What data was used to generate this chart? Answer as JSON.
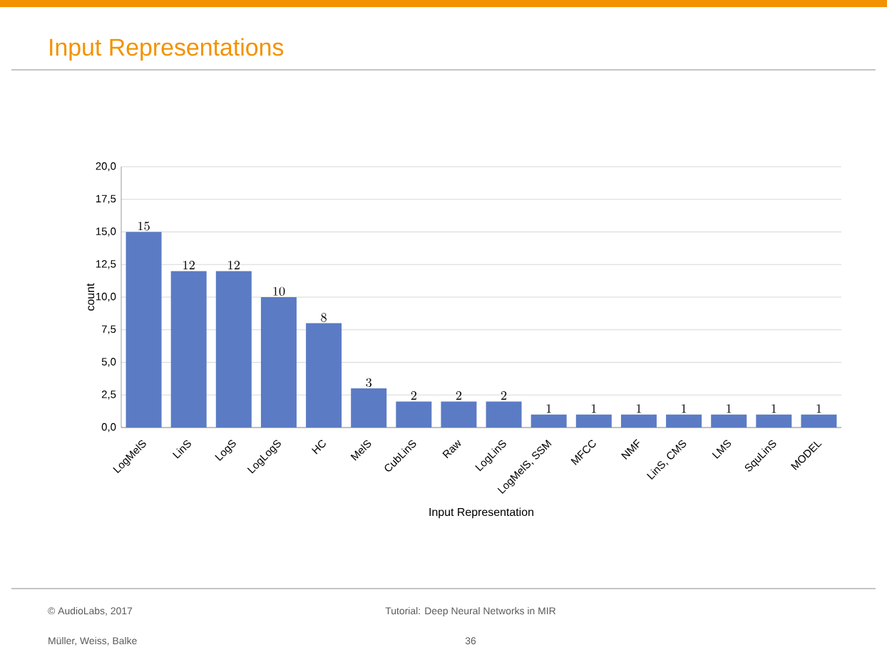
{
  "chart_data": {
    "type": "bar",
    "title": "Input Representations",
    "categories": [
      "LogMelS",
      "LinS",
      "LogS",
      "LogLogS",
      "HC",
      "MelS",
      "CubLinS",
      "Raw",
      "LogLinS",
      "LogMelS, SSM",
      "MFCC",
      "NMF",
      "LinS, CMS",
      "LMS",
      "SquLinS",
      "MODEL"
    ],
    "values": [
      15,
      12,
      12,
      10,
      8,
      3,
      2,
      2,
      2,
      1,
      1,
      1,
      1,
      1,
      1,
      1
    ],
    "color": "#5b7bc4",
    "data_labels": true,
    "xlabel": "Input Representation",
    "ylabel": "count",
    "ylim": [
      0,
      20
    ],
    "yticks": [
      {
        "value": 0,
        "label": "0,0"
      },
      {
        "value": 2.5,
        "label": "2,5"
      },
      {
        "value": 5,
        "label": "5,0"
      },
      {
        "value": 7.5,
        "label": "7,5"
      },
      {
        "value": 10,
        "label": "10,0"
      },
      {
        "value": 12.5,
        "label": "12,5"
      },
      {
        "value": 15,
        "label": "15,0"
      },
      {
        "value": 17.5,
        "label": "17,5"
      },
      {
        "value": 20,
        "label": "20,0"
      }
    ],
    "grid": "y",
    "annotations": [
      "© AudioLabs, 2017",
      "Müller, Weiss, Balke",
      "Tutorial: Deep Neural Networks in MIR",
      "36"
    ]
  }
}
